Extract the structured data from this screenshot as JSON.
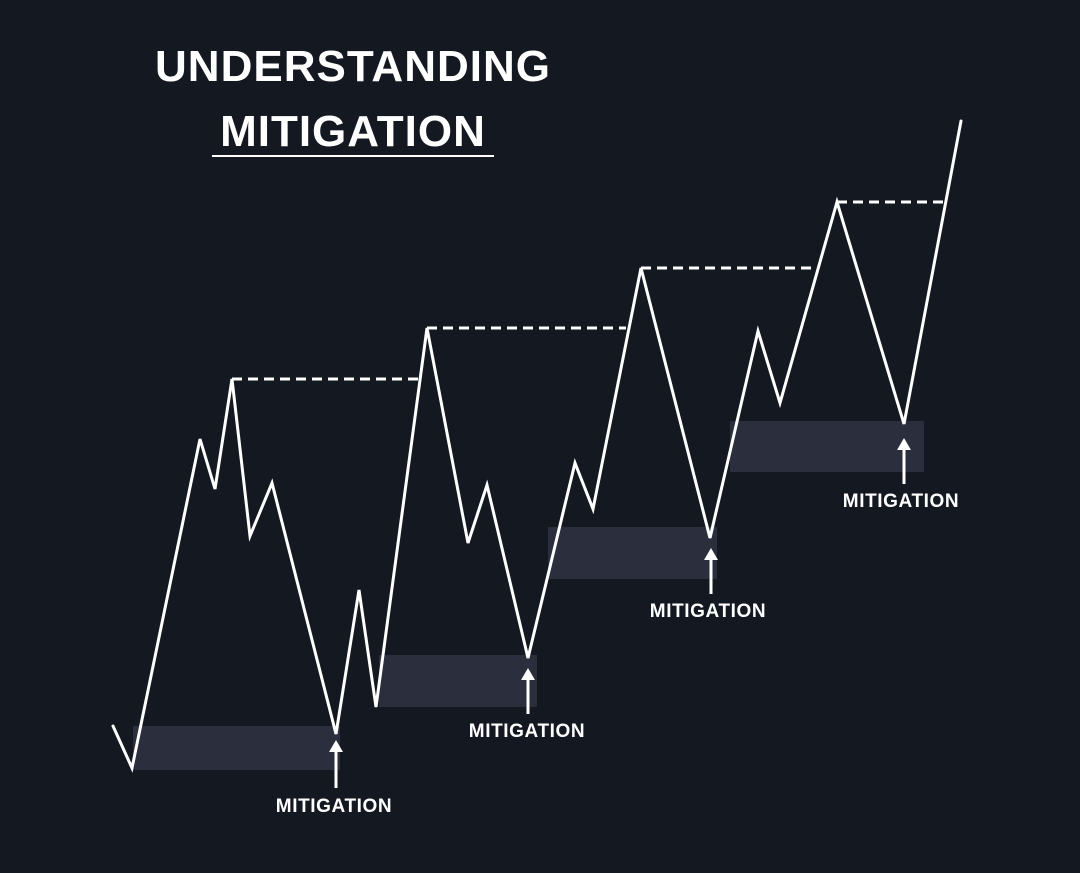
{
  "title": {
    "line1": "UNDERSTANDING",
    "line2": "MITIGATION"
  },
  "labels": [
    "MITIGATION",
    "MITIGATION",
    "MITIGATION",
    "MITIGATION"
  ],
  "colors": {
    "background": "#141821",
    "line": "#ffffff",
    "zone": "#2b2f3d",
    "text": "#ffffff"
  }
}
